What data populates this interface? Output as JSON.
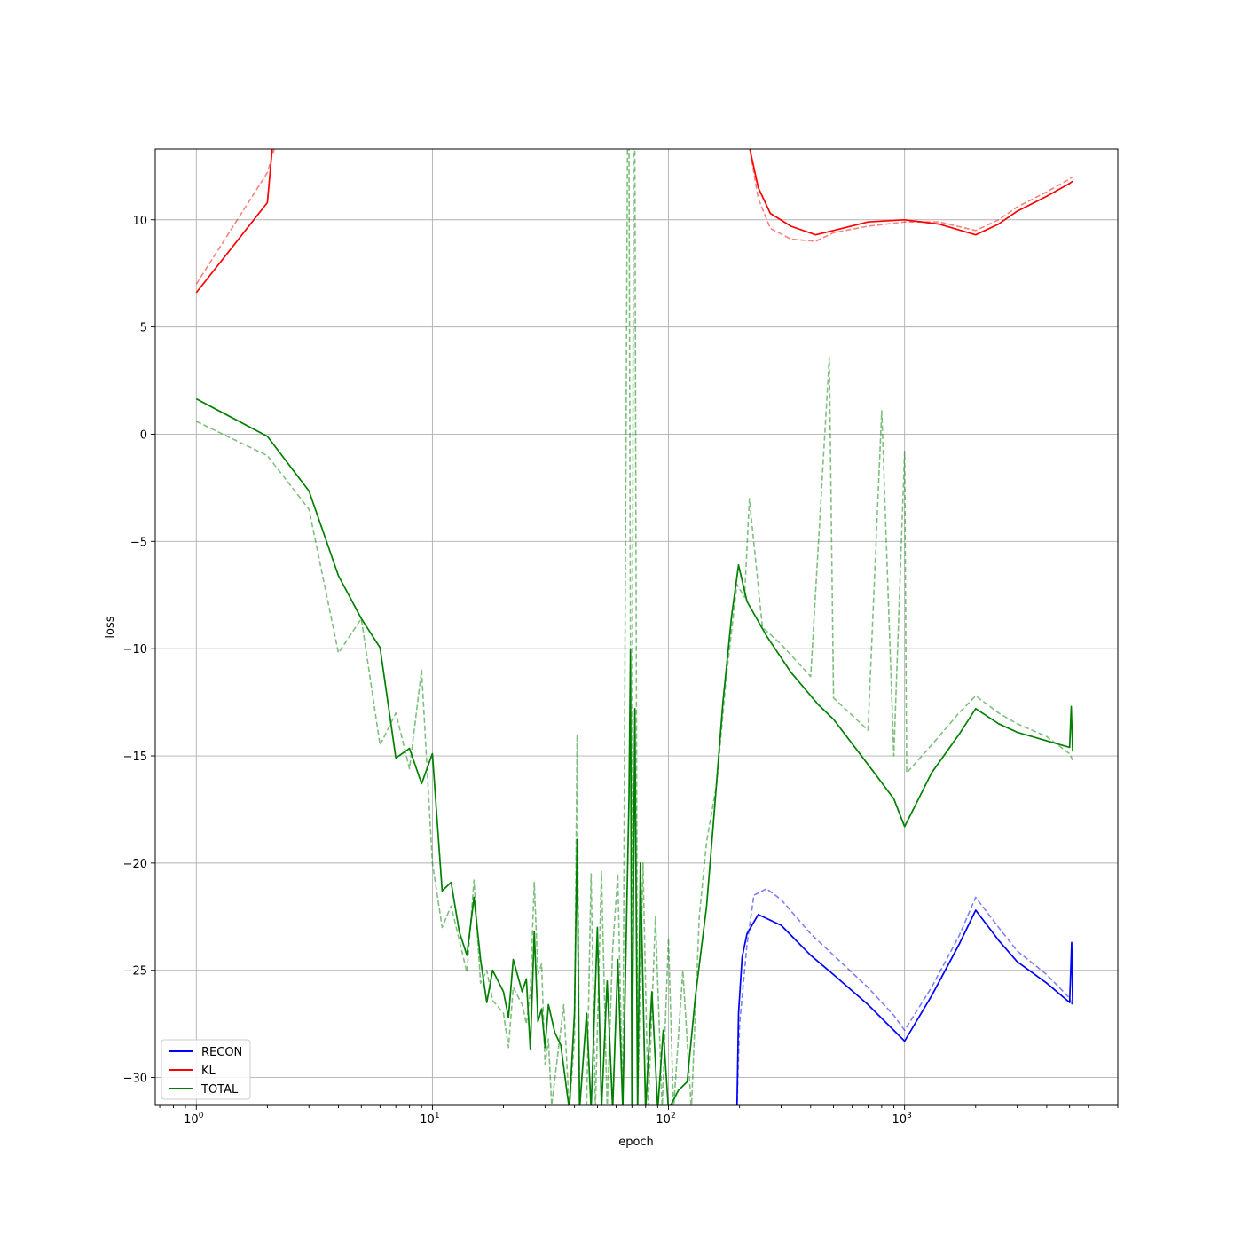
{
  "chart_data": {
    "type": "line",
    "xlabel": "epoch",
    "ylabel": "loss",
    "xscale": "log",
    "xlim": [
      0.67,
      8000
    ],
    "ylim": [
      -31.3,
      13.3
    ],
    "grid": true,
    "legend_position": "lower-left",
    "x_ticks": [
      {
        "value": 1,
        "base": "10",
        "exp": "0"
      },
      {
        "value": 10,
        "base": "10",
        "exp": "1"
      },
      {
        "value": 100,
        "base": "10",
        "exp": "2"
      },
      {
        "value": 1000,
        "base": "10",
        "exp": "3"
      }
    ],
    "y_ticks": [
      {
        "value": 10,
        "label": "10"
      },
      {
        "value": 5,
        "label": "5"
      },
      {
        "value": 0,
        "label": "0"
      },
      {
        "value": -5,
        "label": "−5"
      },
      {
        "value": -10,
        "label": "−10"
      },
      {
        "value": -15,
        "label": "−15"
      },
      {
        "value": -20,
        "label": "−20"
      },
      {
        "value": -25,
        "label": "−25"
      },
      {
        "value": -30,
        "label": "−30"
      }
    ],
    "series": [
      {
        "name": "RECON",
        "color": "#0000ff",
        "train": {
          "style": "solid",
          "points": [
            [
              195,
              -31.5
            ],
            [
              198,
              -27
            ],
            [
              205,
              -24.4
            ],
            [
              215,
              -23.3
            ],
            [
              240,
              -22.4
            ],
            [
              300,
              -22.9
            ],
            [
              400,
              -24.3
            ],
            [
              500,
              -25.2
            ],
            [
              700,
              -26.6
            ],
            [
              900,
              -27.8
            ],
            [
              1000,
              -28.3
            ],
            [
              1300,
              -26.2
            ],
            [
              1700,
              -23.8
            ],
            [
              2000,
              -22.2
            ],
            [
              2500,
              -23.6
            ],
            [
              3000,
              -24.6
            ],
            [
              4000,
              -25.6
            ],
            [
              5000,
              -26.5
            ],
            [
              5100,
              -23.7
            ],
            [
              5150,
              -26.6
            ]
          ]
        },
        "val": {
          "style": "dashed",
          "points": [
            [
              195,
              -31.5
            ],
            [
              200,
              -27.5
            ],
            [
              215,
              -23.8
            ],
            [
              230,
              -21.5
            ],
            [
              260,
              -21.2
            ],
            [
              300,
              -21.7
            ],
            [
              400,
              -23.3
            ],
            [
              500,
              -24.3
            ],
            [
              700,
              -25.8
            ],
            [
              900,
              -27.1
            ],
            [
              1000,
              -27.8
            ],
            [
              1300,
              -25.8
            ],
            [
              1700,
              -23.4
            ],
            [
              2000,
              -21.6
            ],
            [
              2500,
              -23
            ],
            [
              3000,
              -24.1
            ],
            [
              4000,
              -25.2
            ],
            [
              5000,
              -26.3
            ],
            [
              5150,
              -26.7
            ]
          ]
        }
      },
      {
        "name": "KL",
        "color": "#ff0000",
        "train": {
          "style": "solid",
          "points": [
            [
              1,
              6.6
            ],
            [
              2,
              10.8
            ],
            [
              2.1,
              13.4
            ],
            [
              220,
              13.4
            ],
            [
              240,
              11.5
            ],
            [
              270,
              10.3
            ],
            [
              330,
              9.7
            ],
            [
              420,
              9.3
            ],
            [
              500,
              9.5
            ],
            [
              700,
              9.9
            ],
            [
              1000,
              10
            ],
            [
              1400,
              9.8
            ],
            [
              2000,
              9.3
            ],
            [
              2500,
              9.8
            ],
            [
              3000,
              10.4
            ],
            [
              4000,
              11.1
            ],
            [
              5000,
              11.7
            ],
            [
              5150,
              11.8
            ]
          ]
        },
        "val": {
          "style": "dashed",
          "points": [
            [
              1,
              7
            ],
            [
              2,
              12.2
            ],
            [
              2.15,
              13.4
            ],
            [
              220,
              13.4
            ],
            [
              240,
              11
            ],
            [
              270,
              9.6
            ],
            [
              330,
              9.1
            ],
            [
              420,
              9
            ],
            [
              500,
              9.4
            ],
            [
              700,
              9.7
            ],
            [
              1000,
              9.9
            ],
            [
              1400,
              9.9
            ],
            [
              2000,
              9.5
            ],
            [
              2500,
              10
            ],
            [
              3000,
              10.6
            ],
            [
              4000,
              11.3
            ],
            [
              5000,
              11.9
            ],
            [
              5150,
              12
            ]
          ]
        }
      },
      {
        "name": "TOTAL",
        "color": "#008000",
        "train": {
          "style": "solid",
          "points": [
            [
              1,
              1.65
            ],
            [
              2,
              -0.1
            ],
            [
              3,
              -2.65
            ],
            [
              4,
              -6.6
            ],
            [
              5,
              -8.6
            ],
            [
              6,
              -9.95
            ],
            [
              7,
              -15.1
            ],
            [
              8,
              -14.65
            ],
            [
              9,
              -16.3
            ],
            [
              10,
              -14.9
            ],
            [
              11,
              -21.3
            ],
            [
              12,
              -20.9
            ],
            [
              13,
              -23.2
            ],
            [
              14,
              -24.3
            ],
            [
              15,
              -21.6
            ],
            [
              16,
              -24.5
            ],
            [
              17,
              -26.5
            ],
            [
              18,
              -25
            ],
            [
              20,
              -26
            ],
            [
              21,
              -27.2
            ],
            [
              22,
              -24.5
            ],
            [
              24,
              -26
            ],
            [
              25,
              -25.4
            ],
            [
              26,
              -28.7
            ],
            [
              27,
              -23.2
            ],
            [
              28,
              -27.4
            ],
            [
              29,
              -26.8
            ],
            [
              30,
              -28.6
            ],
            [
              31,
              -26.6
            ],
            [
              33,
              -27.9
            ],
            [
              35,
              -28.5
            ],
            [
              38,
              -31.5
            ],
            [
              40,
              -27
            ],
            [
              41,
              -18.9
            ],
            [
              42,
              -31.5
            ],
            [
              45,
              -27
            ],
            [
              47,
              -31.5
            ],
            [
              50,
              -23
            ],
            [
              52,
              -31.5
            ],
            [
              55,
              -25.5
            ],
            [
              58,
              -31.5
            ],
            [
              61,
              -24.5
            ],
            [
              64,
              -31.5
            ],
            [
              68,
              -17
            ],
            [
              69,
              -10
            ],
            [
              70,
              -31.5
            ],
            [
              72,
              -12.8
            ],
            [
              74,
              -31.5
            ],
            [
              76,
              -20
            ],
            [
              80,
              -31.5
            ],
            [
              85,
              -26
            ],
            [
              90,
              -31.5
            ],
            [
              95,
              -27.8
            ],
            [
              100,
              -31.5
            ],
            [
              110,
              -30.6
            ],
            [
              120,
              -30.2
            ],
            [
              130,
              -26.2
            ],
            [
              145,
              -22
            ],
            [
              155,
              -18.1
            ],
            [
              170,
              -12.5
            ],
            [
              185,
              -8.5
            ],
            [
              198,
              -6.1
            ],
            [
              215,
              -7.8
            ],
            [
              260,
              -9.4
            ],
            [
              330,
              -11.1
            ],
            [
              430,
              -12.6
            ],
            [
              500,
              -13.3
            ],
            [
              700,
              -15.4
            ],
            [
              900,
              -17
            ],
            [
              1000,
              -18.3
            ],
            [
              1300,
              -15.8
            ],
            [
              1700,
              -14
            ],
            [
              2000,
              -12.8
            ],
            [
              2500,
              -13.5
            ],
            [
              3000,
              -13.9
            ],
            [
              4000,
              -14.3
            ],
            [
              5000,
              -14.6
            ],
            [
              5080,
              -12.7
            ],
            [
              5150,
              -14.8
            ]
          ]
        },
        "val": {
          "style": "dashed",
          "points": [
            [
              1,
              0.6
            ],
            [
              2,
              -1
            ],
            [
              3,
              -3.5
            ],
            [
              4,
              -10.2
            ],
            [
              5,
              -8.6
            ],
            [
              6,
              -14.5
            ],
            [
              7,
              -13
            ],
            [
              8,
              -15.6
            ],
            [
              9,
              -11
            ],
            [
              10,
              -20
            ],
            [
              11,
              -23
            ],
            [
              12,
              -22
            ],
            [
              13,
              -23.6
            ],
            [
              14,
              -25.1
            ],
            [
              15,
              -20.8
            ],
            [
              16,
              -25.6
            ],
            [
              17,
              -25
            ],
            [
              18,
              -26.4
            ],
            [
              20,
              -27
            ],
            [
              21,
              -28.6
            ],
            [
              22,
              -25.8
            ],
            [
              24,
              -26.6
            ],
            [
              25,
              -27.5
            ],
            [
              26,
              -26
            ],
            [
              27,
              -20.9
            ],
            [
              28,
              -25.2
            ],
            [
              29,
              -24.7
            ],
            [
              30,
              -29.4
            ],
            [
              31,
              -28.2
            ],
            [
              32,
              -31.3
            ],
            [
              36,
              -26.6
            ],
            [
              38,
              -31.5
            ],
            [
              40,
              -28.2
            ],
            [
              41,
              -14
            ],
            [
              42,
              -31.5
            ],
            [
              45,
              -31.5
            ],
            [
              47,
              -20.5
            ],
            [
              49,
              -31.5
            ],
            [
              52,
              -20.4
            ],
            [
              55,
              -31.5
            ],
            [
              58,
              -24
            ],
            [
              61,
              -20.5
            ],
            [
              64,
              -31.5
            ],
            [
              67,
              13.4
            ],
            [
              68,
              13.4
            ],
            [
              70,
              -31.5
            ],
            [
              71,
              13.4
            ],
            [
              72,
              13.4
            ],
            [
              74,
              -31.5
            ],
            [
              78,
              -20
            ],
            [
              82,
              -31.5
            ],
            [
              88,
              -22.5
            ],
            [
              94,
              -31.5
            ],
            [
              100,
              -23.5
            ],
            [
              105,
              -31.5
            ],
            [
              115,
              -25
            ],
            [
              125,
              -31.5
            ],
            [
              135,
              -22.5
            ],
            [
              145,
              -19
            ],
            [
              160,
              -16.3
            ],
            [
              175,
              -11.5
            ],
            [
              195,
              -7
            ],
            [
              210,
              -7.6
            ],
            [
              220,
              -3
            ],
            [
              250,
              -9
            ],
            [
              300,
              -9.8
            ],
            [
              400,
              -11.3
            ],
            [
              480,
              3.6
            ],
            [
              500,
              -12.3
            ],
            [
              700,
              -13.8
            ],
            [
              800,
              1.1
            ],
            [
              900,
              -15
            ],
            [
              1000,
              -0.8
            ],
            [
              1020,
              -15.8
            ],
            [
              1300,
              -14.5
            ],
            [
              1700,
              -13
            ],
            [
              2000,
              -12.2
            ],
            [
              2500,
              -13
            ],
            [
              3000,
              -13.5
            ],
            [
              4000,
              -14.1
            ],
            [
              5000,
              -14.9
            ],
            [
              5150,
              -15.2
            ]
          ]
        }
      }
    ]
  }
}
